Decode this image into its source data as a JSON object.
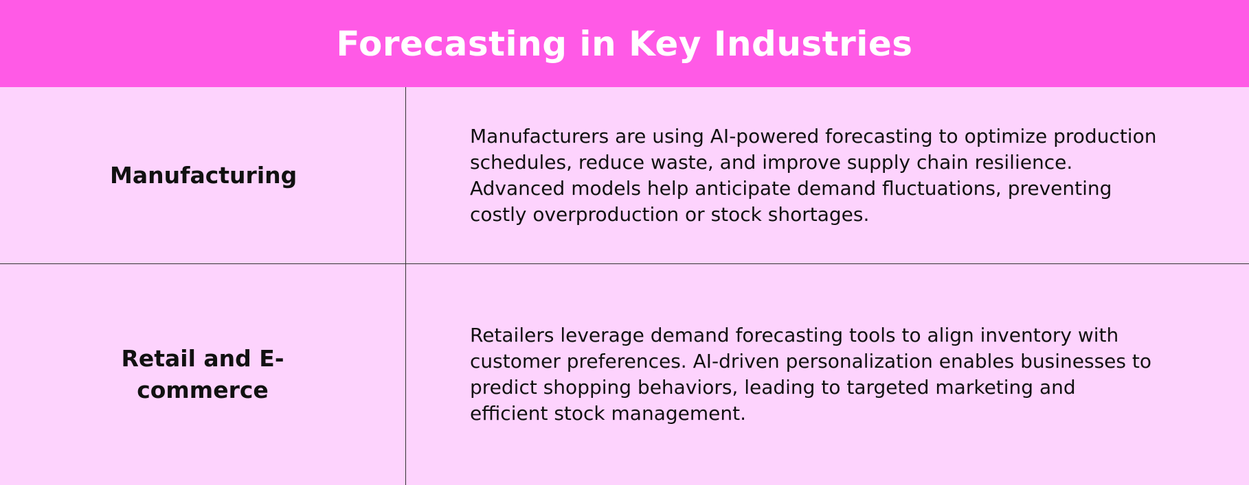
{
  "header": {
    "title": "Forecasting in Key Industries"
  },
  "table": {
    "rows": [
      [
        "Manufacturing",
        "Manufacturers are using AI-powered forecasting to optimize production schedules, reduce waste, and improve supply chain resilience. Advanced models help anticipate demand fluctuations, preventing costly overproduction or stock shortages."
      ],
      [
        "Retail and E-commerce",
        "Retailers leverage demand forecasting tools to align inventory with customer preferences. AI-driven personalization enables businesses to predict shopping behaviors, leading to targeted marketing and efficient stock management."
      ]
    ]
  }
}
